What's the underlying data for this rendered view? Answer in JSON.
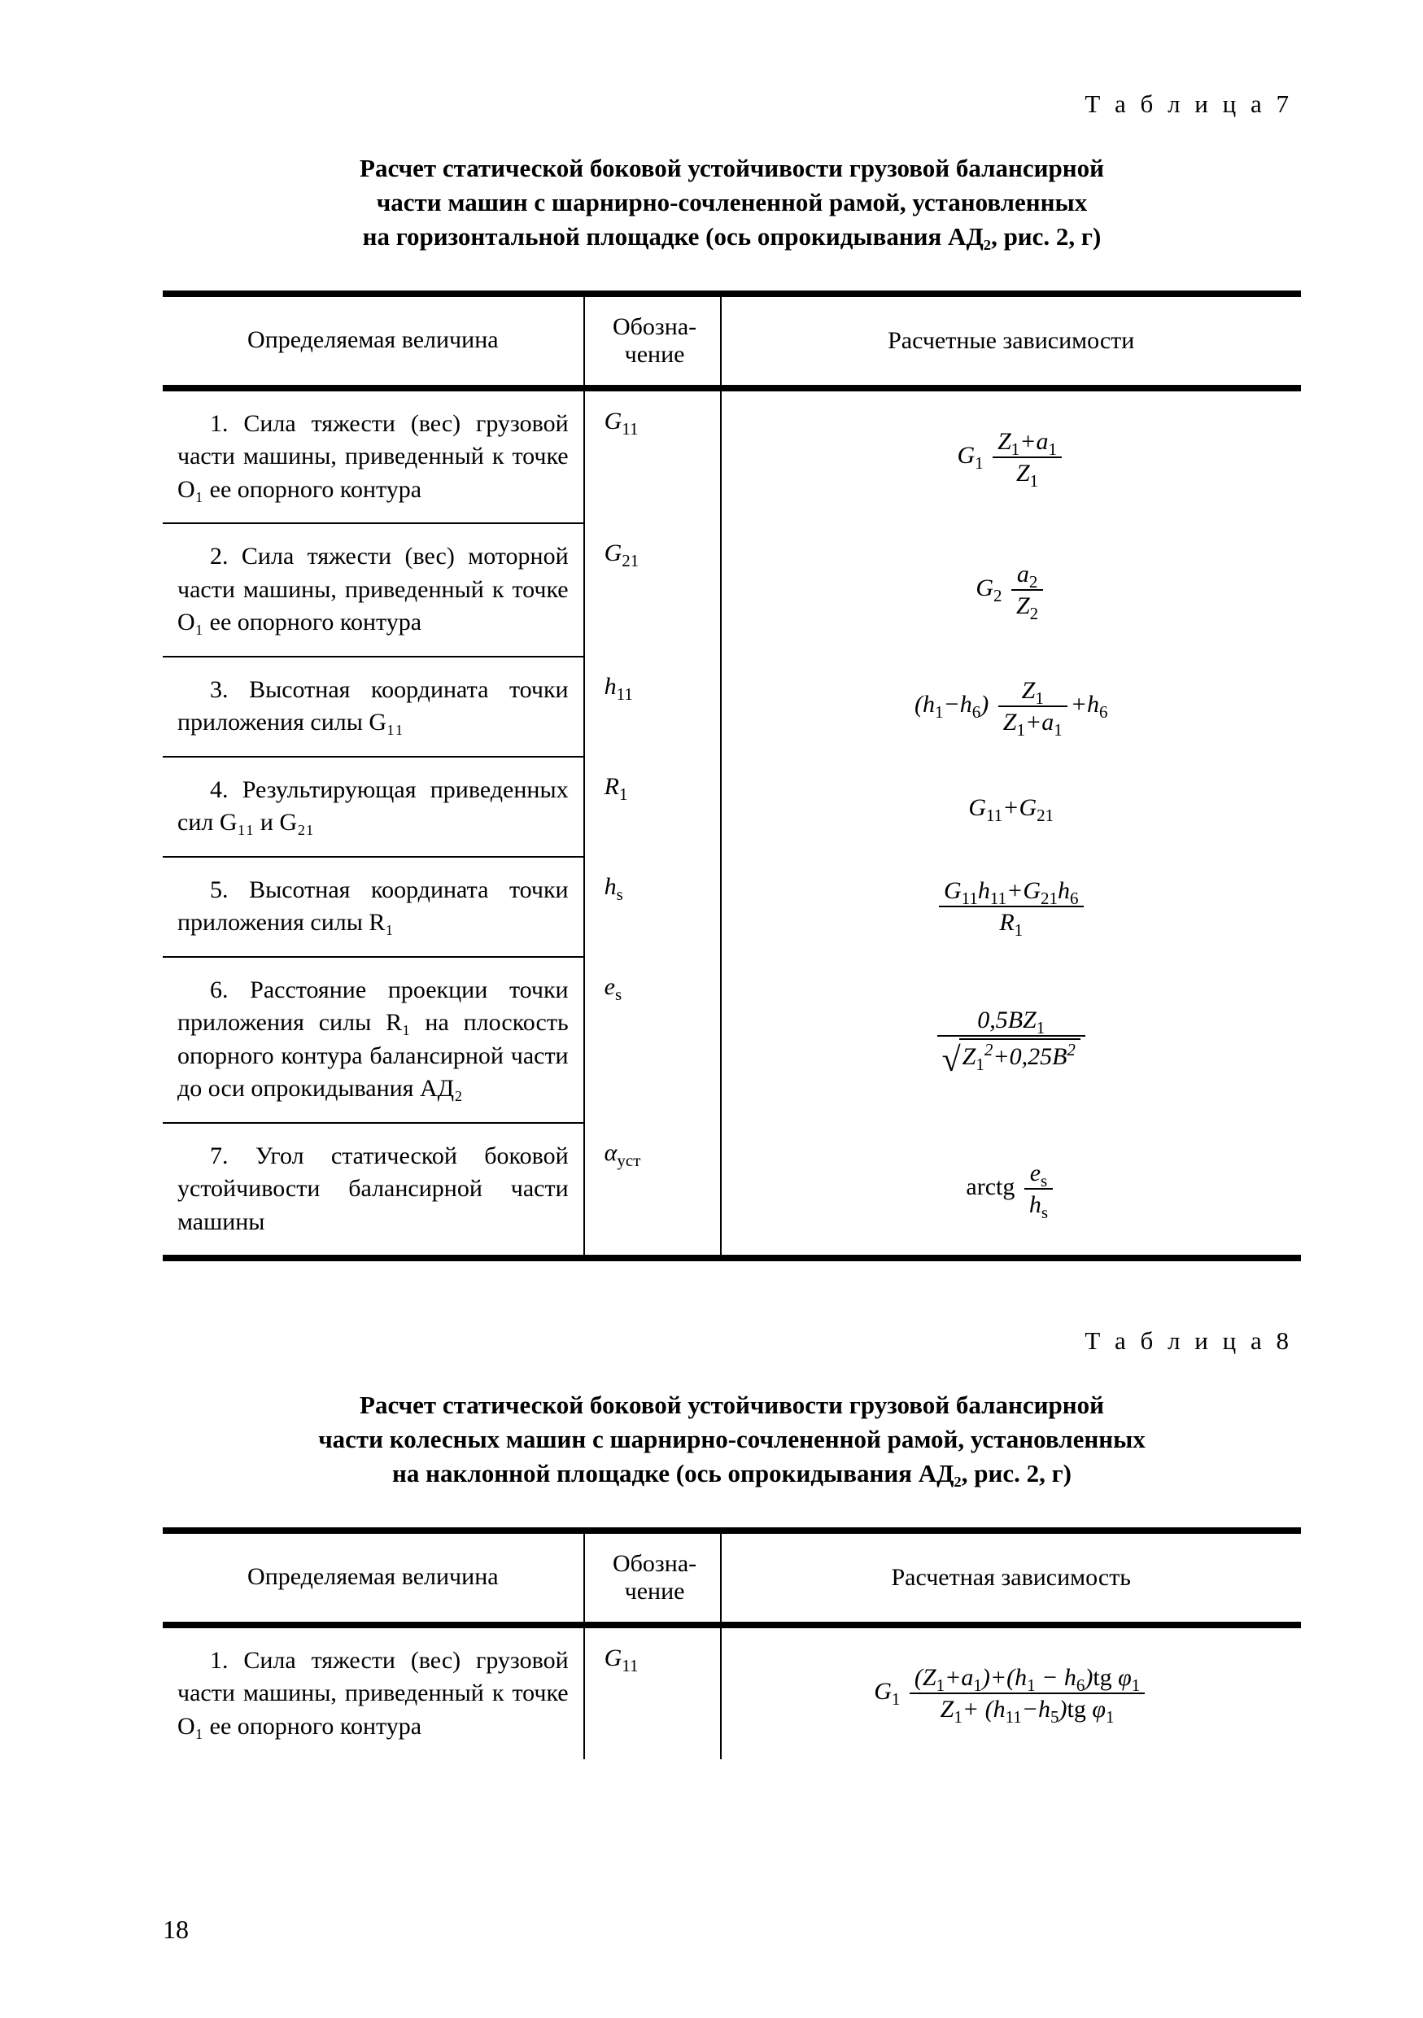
{
  "page_number": "18",
  "table7": {
    "label": "Т а б л и ц а 7",
    "caption_lines": [
      "Расчет статической боковой устойчивости грузовой балансирной",
      "части машин с шарнирно-сочлененной рамой, установленных",
      "на горизонтальной площадке (ось опрокидывания AД₂, рис. 2, г)"
    ],
    "headers": {
      "c1": "Определяемая величина",
      "c2": "Обозна-\nчение",
      "c3": "Расчетные зависимости"
    },
    "rows": [
      {
        "desc": "1. Сила тяжести (вес) грузовой части машины, приведенный к точке O₁ ее опорного контура",
        "sym": "G₁₁",
        "formula_html": "<span class=\"formula-wrap\"><i>G</i><sub>1</sub>&nbsp;<span class=\"frac\"><span class=\"num\"><i>Z</i><sub>1</sub>+<i>a</i><sub>1</sub></span><span class=\"den\"><i>Z</i><sub>1</sub></span></span></span>"
      },
      {
        "desc": "2. Сила тяжести (вес) моторной части машины, приведенный к точке O₁ ее опорного контура",
        "sym": "G₂₁",
        "formula_html": "<span class=\"formula-wrap\"><i>G</i><sub>2</sub>&nbsp;<span class=\"frac\"><span class=\"num\"><i>a</i><sub>2</sub></span><span class=\"den\"><i>Z</i><sub>2</sub></span></span></span>"
      },
      {
        "desc": "3. Высотная координата точки приложения силы G₁₁",
        "sym": "h₁₁",
        "formula_html": "<span class=\"formula-wrap\">(<i>h</i><sub>1</sub>&minus;<i>h</i><sub>6</sub>)&nbsp;<span class=\"frac\"><span class=\"num\"><i>Z</i><sub>1</sub></span><span class=\"den\"><i>Z</i><sub>1</sub>+<i>a</i><sub>1</sub></span></span>+<i>h</i><sub>6</sub></span>"
      },
      {
        "desc": "4. Результирующая приведенных сил G₁₁ и G₂₁",
        "sym": "R₁",
        "formula_html": "<span class=\"formula-wrap\"><i>G</i><sub>11</sub>+<i>G</i><sub>21</sub></span>"
      },
      {
        "desc": "5. Высотная координата точки приложения силы R₁",
        "sym": "hₛ",
        "formula_html": "<span class=\"formula-wrap\"><span class=\"frac\"><span class=\"num\"><i>G</i><sub>11</sub><i>h</i><sub>11</sub>+<i>G</i><sub>21</sub><i>h</i><sub>6</sub></span><span class=\"den\"><i>R</i><sub>1</sub></span></span></span>"
      },
      {
        "desc": "6. Расстояние проекции точки приложения силы R₁ на плоскость опорного контура балансирной части до оси опрокидывания АД₂",
        "sym": "eₛ",
        "formula_html": "<span class=\"formula-wrap\"><span class=\"frac\"><span class=\"num\">0,5<i>BZ</i><sub>1</sub></span><span class=\"den\"><span class=\"sqrt-wrap\"><span class=\"sqrt-sign\">&#8730;</span><span class=\"sqrt-body\"><i>Z</i><sub>1</sub><sup>2</sup>+0,25<i>B</i><sup>2</sup></span></span></span></span></span>"
      },
      {
        "desc": "7. Угол статической боковой устойчивости балансирной части машины",
        "sym": "αуст",
        "formula_html": "<span class=\"formula-wrap\"><span class=\"upright\">arctg</span>&nbsp;<span class=\"frac\"><span class=\"num\"><i>e</i><sub>s</sub></span><span class=\"den\"><i>h</i><sub>s</sub></span></span></span>"
      }
    ]
  },
  "table8": {
    "label": "Т а б л и ц а  8",
    "caption_lines": [
      "Расчет статической боковой устойчивости грузовой балансирной",
      "части колесных машин с шарнирно-сочлененной рамой, установленных",
      "на наклонной площадке (ось опрокидывания AД₂, рис. 2, г)"
    ],
    "headers": {
      "c1": "Определяемая величина",
      "c2": "Обозна-\nчение",
      "c3": "Расчетная зависимость"
    },
    "rows": [
      {
        "desc": "1. Сила тяжести (вес) грузовой части машины, приведенный к точке O₁ ее опорного контура",
        "sym": "G₁₁",
        "formula_html": "<span class=\"formula-wrap\"><i>G</i><sub>1</sub>&nbsp;<span class=\"frac\"><span class=\"num\">(<i>Z</i><sub>1</sub>+<i>a</i><sub>1</sub>)+(<i>h</i><sub>1</sub>&nbsp;&minus;&nbsp;<i>h</i><sub>6</sub>)<span class=\"upright\">tg</span>&nbsp;&phi;<sub>1</sub></span><span class=\"den\"><i>Z</i><sub>1</sub>+ (<i>h</i><sub>11</sub>&minus;<i>h</i><sub>5</sub>)<span class=\"upright\">tg</span>&nbsp;&phi;<sub>1</sub></span></span></span>"
      }
    ]
  }
}
